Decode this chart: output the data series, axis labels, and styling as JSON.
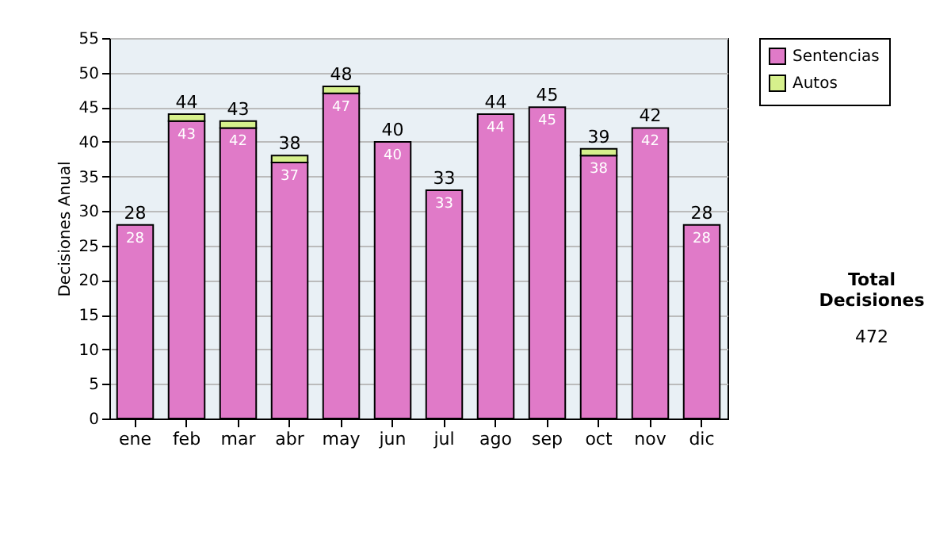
{
  "chart_data": {
    "type": "bar",
    "stacked": true,
    "ylabel": "Decisiones Anual",
    "categories": [
      "ene",
      "feb",
      "mar",
      "abr",
      "may",
      "jun",
      "jul",
      "ago",
      "sep",
      "oct",
      "nov",
      "dic"
    ],
    "series": [
      {
        "name": "Sentencias",
        "color": "#e07ac8",
        "values": [
          28,
          43,
          42,
          37,
          47,
          40,
          33,
          44,
          45,
          38,
          42,
          28
        ],
        "value_labels": [
          "28",
          "43",
          "42",
          "37",
          "47",
          "40",
          "33",
          "44",
          "45",
          "38",
          "42",
          "28"
        ]
      },
      {
        "name": "Autos",
        "color": "#d6f08c",
        "values": [
          0,
          1,
          1,
          1,
          1,
          0,
          0,
          0,
          0,
          1,
          0,
          0
        ]
      }
    ],
    "totals": [
      "28",
      "44",
      "43",
      "38",
      "48",
      "40",
      "33",
      "44",
      "45",
      "39",
      "42",
      "28"
    ],
    "ylim": [
      0,
      55
    ],
    "yticks": [
      0,
      5,
      10,
      15,
      20,
      25,
      30,
      35,
      40,
      45,
      50,
      55
    ],
    "grid": "y",
    "legend": "right",
    "annotations": [
      "Total Decisiones",
      "472"
    ]
  }
}
